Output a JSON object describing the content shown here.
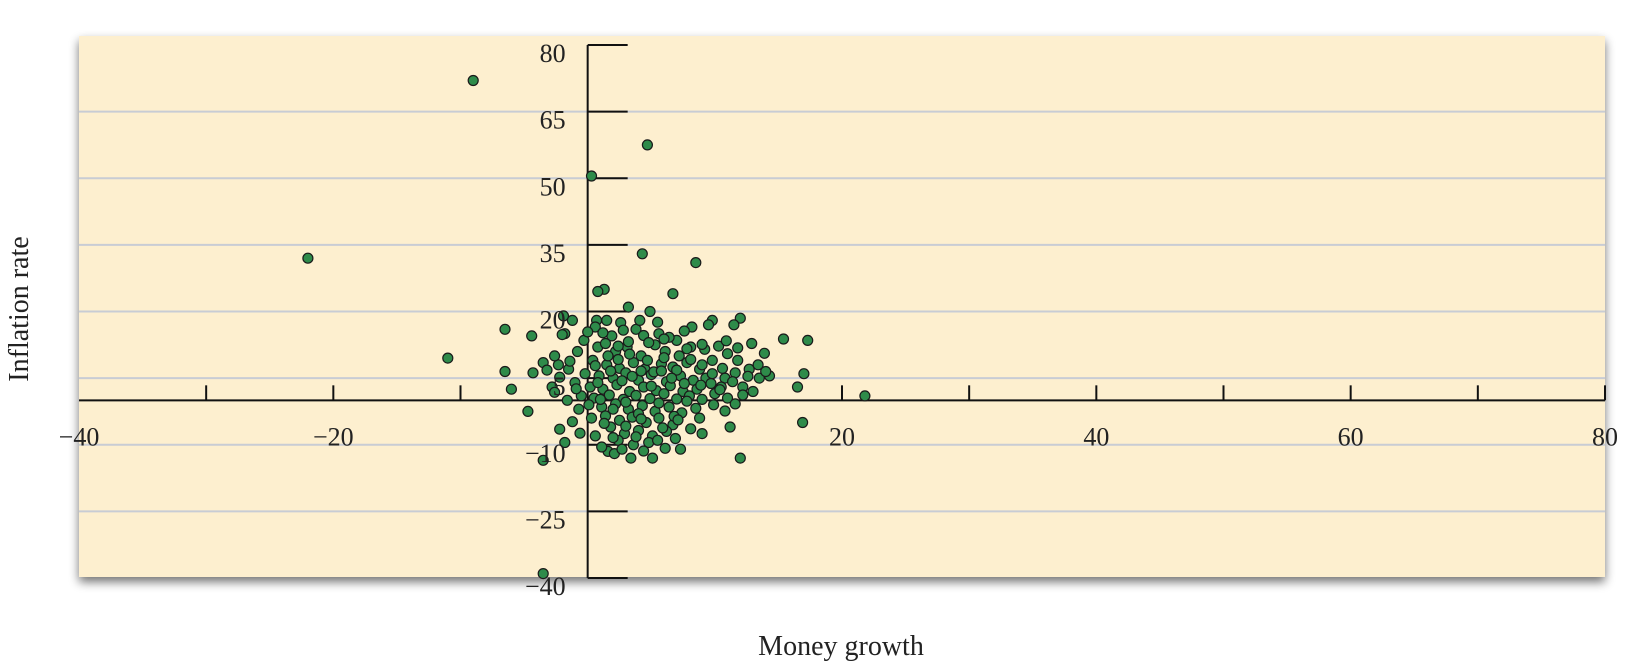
{
  "chart_data": {
    "type": "scatter",
    "title": "",
    "xlabel": "Money growth",
    "ylabel": "Inflation rate",
    "xlim": [
      -40,
      80
    ],
    "ylim": [
      -40,
      80
    ],
    "x_ticks": [
      -40,
      -20,
      20,
      40,
      60,
      80
    ],
    "x_tick_labels": [
      "−40",
      "−20",
      "20",
      "40",
      "60",
      "80"
    ],
    "y_ticks": [
      80,
      65,
      50,
      35,
      20,
      5,
      -10,
      -25,
      -40
    ],
    "y_tick_labels": [
      "80",
      "65",
      "50",
      "35",
      "20",
      "5",
      "−10",
      "−25",
      "−40"
    ],
    "grid": "horizontal",
    "legend": "none",
    "colors": {
      "background": "#fdefcf",
      "point": "#2e8b4a",
      "point_edge": "#1a1a1a",
      "axis": "#111111",
      "grid": "#c8ccd4"
    },
    "series": [
      {
        "points": [
          [
            -9,
            72
          ],
          [
            -22,
            32
          ],
          [
            -11,
            9.5
          ],
          [
            4.7,
            57.5
          ],
          [
            0.3,
            50.5
          ],
          [
            4.3,
            33
          ],
          [
            8.5,
            31
          ],
          [
            1.3,
            25
          ],
          [
            0.8,
            24.5
          ],
          [
            6.7,
            24
          ],
          [
            3.2,
            21
          ],
          [
            4.9,
            20
          ],
          [
            -1.9,
            19
          ],
          [
            -1.2,
            18
          ],
          [
            0.7,
            18
          ],
          [
            1.5,
            18
          ],
          [
            9.8,
            18
          ],
          [
            12,
            18.5
          ],
          [
            11.5,
            17
          ],
          [
            9.5,
            17
          ],
          [
            8.2,
            16.5
          ],
          [
            -6.5,
            16
          ],
          [
            -1.8,
            15
          ],
          [
            -4.4,
            14.5
          ],
          [
            -2,
            14.8
          ],
          [
            15.4,
            13.8
          ],
          [
            17.3,
            13.5
          ],
          [
            -6.5,
            6.5
          ],
          [
            -4.3,
            6.2
          ],
          [
            -2.3,
            8
          ],
          [
            -3.5,
            8.5
          ],
          [
            -6,
            2.5
          ],
          [
            -4.7,
            -2.5
          ],
          [
            -1.8,
            -9.5
          ],
          [
            -3.5,
            -13.5
          ],
          [
            -3.5,
            -39
          ],
          [
            12,
            -13
          ],
          [
            3.4,
            -13
          ],
          [
            5.1,
            -13
          ],
          [
            1.6,
            -11.5
          ],
          [
            2.1,
            -12
          ],
          [
            7.3,
            -11
          ],
          [
            9,
            -7.5
          ],
          [
            11.2,
            -6
          ],
          [
            16.9,
            -5
          ],
          [
            21.8,
            1
          ],
          [
            17,
            6
          ],
          [
            16.5,
            3
          ],
          [
            14.3,
            5.5
          ],
          [
            13.5,
            5
          ],
          [
            14,
            6.5
          ],
          [
            12.7,
            7
          ],
          [
            11.8,
            9
          ],
          [
            11,
            10.5
          ],
          [
            9.8,
            9
          ],
          [
            10.8,
            5
          ],
          [
            12.2,
            3
          ],
          [
            10.5,
            3
          ],
          [
            -0.3,
            13.5
          ],
          [
            0.8,
            12
          ],
          [
            2.2,
            11
          ],
          [
            3.1,
            12
          ],
          [
            4.2,
            10
          ],
          [
            5.3,
            12.5
          ],
          [
            6.1,
            11
          ],
          [
            7.2,
            10
          ],
          [
            0.4,
            9
          ],
          [
            1.5,
            8
          ],
          [
            2.5,
            7.2
          ],
          [
            3.6,
            8.5
          ],
          [
            4.5,
            7
          ],
          [
            5.8,
            8.2
          ],
          [
            6.7,
            7.5
          ],
          [
            7.8,
            8.5
          ],
          [
            8.8,
            7
          ],
          [
            -0.2,
            6
          ],
          [
            0.9,
            5.5
          ],
          [
            2,
            5
          ],
          [
            3,
            6.2
          ],
          [
            4,
            4.5
          ],
          [
            5,
            5.8
          ],
          [
            6.2,
            4.2
          ],
          [
            7.3,
            5.5
          ],
          [
            8.3,
            4.5
          ],
          [
            9.3,
            5
          ],
          [
            0.2,
            3
          ],
          [
            1.2,
            2.5
          ],
          [
            2.3,
            3.5
          ],
          [
            3.3,
            2
          ],
          [
            4.4,
            3
          ],
          [
            5.4,
            2.2
          ],
          [
            6.5,
            3.3
          ],
          [
            7.5,
            2
          ],
          [
            8.6,
            2.5
          ],
          [
            -0.5,
            1
          ],
          [
            0.5,
            0.5
          ],
          [
            1.7,
            1.2
          ],
          [
            2.8,
            0.2
          ],
          [
            3.8,
            1.1
          ],
          [
            4.9,
            0.4
          ],
          [
            6,
            1.5
          ],
          [
            7,
            0.3
          ],
          [
            8,
            1
          ],
          [
            9,
            0.2
          ],
          [
            10,
            1.5
          ],
          [
            11,
            0.5
          ],
          [
            0.1,
            -1
          ],
          [
            1.1,
            -1.5
          ],
          [
            2.2,
            -0.8
          ],
          [
            3.2,
            -2
          ],
          [
            4.3,
            -1.2
          ],
          [
            5.3,
            -2.5
          ],
          [
            6.4,
            -1.5
          ],
          [
            7.4,
            -2.8
          ],
          [
            8.5,
            -1.8
          ],
          [
            1.4,
            -3.5
          ],
          [
            2.5,
            -4.5
          ],
          [
            3.5,
            -3.8
          ],
          [
            4.6,
            -5
          ],
          [
            5.6,
            -4
          ],
          [
            6.7,
            -5.5
          ],
          [
            1.8,
            -6
          ],
          [
            2.9,
            -7.5
          ],
          [
            4,
            -6.8
          ],
          [
            5.1,
            -8
          ],
          [
            6.2,
            -7
          ],
          [
            2.4,
            -9
          ],
          [
            3.6,
            -10
          ],
          [
            4.8,
            -9.5
          ],
          [
            -1,
            4
          ],
          [
            -1.5,
            7
          ],
          [
            -2.8,
            3
          ],
          [
            -0.8,
            11
          ],
          [
            1.9,
            14.5
          ],
          [
            3.8,
            16
          ],
          [
            5.6,
            15
          ],
          [
            7,
            13.5
          ],
          [
            8.1,
            12
          ],
          [
            9.2,
            11.5
          ],
          [
            10.3,
            12.2
          ],
          [
            0.6,
            16.5
          ],
          [
            2.6,
            17.5
          ],
          [
            4.1,
            18
          ],
          [
            5.5,
            17.6
          ],
          [
            0.6,
            7.8
          ],
          [
            1.6,
            10
          ],
          [
            2.4,
            9.2
          ],
          [
            3.3,
            10.4
          ],
          [
            4.7,
            9
          ],
          [
            5.2,
            6.4
          ],
          [
            6,
            9.6
          ],
          [
            7,
            6.8
          ],
          [
            8.1,
            9.2
          ],
          [
            9,
            8
          ],
          [
            9.8,
            6
          ],
          [
            10.6,
            7.2
          ],
          [
            11.6,
            6.2
          ],
          [
            12.6,
            5.4
          ],
          [
            13.4,
            8
          ],
          [
            0.8,
            4
          ],
          [
            1.8,
            6.6
          ],
          [
            2.7,
            4.4
          ],
          [
            3.5,
            5.4
          ],
          [
            4.2,
            6.6
          ],
          [
            5,
            3.2
          ],
          [
            5.8,
            6.6
          ],
          [
            6.6,
            5
          ],
          [
            7.6,
            3.8
          ],
          [
            8.9,
            3.4
          ],
          [
            9.7,
            3.8
          ],
          [
            10.4,
            2.4
          ],
          [
            11.4,
            4.2
          ],
          [
            12.2,
            1.2
          ],
          [
            13,
            2
          ],
          [
            1,
            0.2
          ],
          [
            2,
            -2
          ],
          [
            3,
            -0.4
          ],
          [
            4,
            -3
          ],
          [
            5.6,
            -0.6
          ],
          [
            6.8,
            -3.6
          ],
          [
            7.8,
            -0.2
          ],
          [
            8.8,
            -4
          ],
          [
            9.9,
            -1
          ],
          [
            10.8,
            -2.4
          ],
          [
            11.6,
            -0.8
          ],
          [
            0.3,
            -4
          ],
          [
            1.3,
            -5.2
          ],
          [
            3,
            -5.8
          ],
          [
            4.2,
            -4.2
          ],
          [
            5.9,
            -6.2
          ],
          [
            7.1,
            -4.4
          ],
          [
            8.1,
            -6.4
          ],
          [
            0.6,
            -8
          ],
          [
            2,
            -8.4
          ],
          [
            3.8,
            -8.2
          ],
          [
            5.5,
            -9
          ],
          [
            6.9,
            -8.6
          ],
          [
            1.1,
            -10.5
          ],
          [
            2.7,
            -11
          ],
          [
            4.4,
            -11.4
          ],
          [
            6.1,
            -10.8
          ],
          [
            -0.7,
            -2
          ],
          [
            -1.2,
            -4.8
          ],
          [
            -2.2,
            -6.5
          ],
          [
            -0.6,
            -7.4
          ],
          [
            -1.6,
            0
          ],
          [
            -2.6,
            1.8
          ],
          [
            -0.9,
            2.6
          ],
          [
            -2.2,
            5.2
          ],
          [
            -3.2,
            6.8
          ],
          [
            -1.4,
            8.8
          ],
          [
            -2.6,
            10
          ],
          [
            0,
            15.4
          ],
          [
            1.2,
            15.2
          ],
          [
            2.8,
            15.8
          ],
          [
            4.4,
            14.6
          ],
          [
            6.4,
            14.2
          ],
          [
            7.6,
            15.6
          ],
          [
            3.2,
            13.2
          ],
          [
            4.8,
            13
          ],
          [
            6,
            13.8
          ],
          [
            1.4,
            12.8
          ],
          [
            2.4,
            12.2
          ],
          [
            7.8,
            11.6
          ],
          [
            9,
            12.6
          ],
          [
            10.9,
            13.4
          ],
          [
            11.8,
            11.8
          ],
          [
            12.9,
            12.8
          ],
          [
            13.9,
            10.6
          ]
        ]
      }
    ]
  }
}
